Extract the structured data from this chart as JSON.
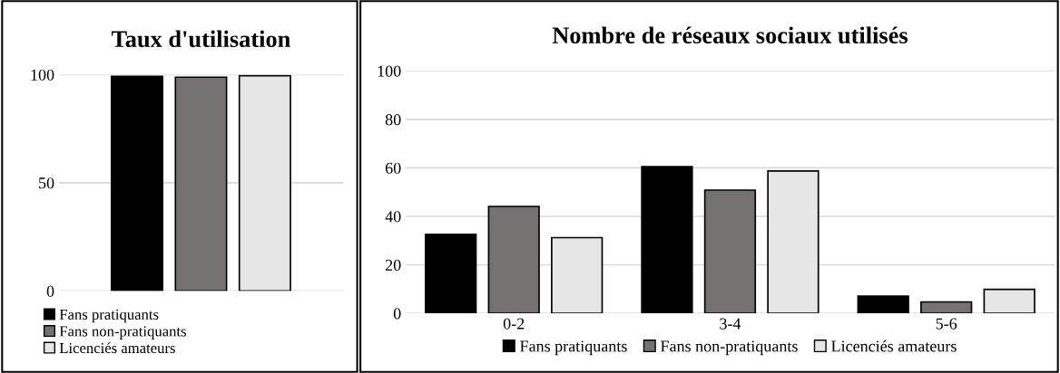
{
  "chart_data": [
    {
      "type": "bar",
      "title": "Taux d'utilisation",
      "categories": [
        null
      ],
      "series": [
        {
          "name": "Fans pratiquants",
          "color": "#000000",
          "values": [
            99.2
          ]
        },
        {
          "name": "Fans non-pratiquants",
          "color": "#767171",
          "values": [
            98.8
          ]
        },
        {
          "name": "Licenciés amateurs",
          "color": "#e7e6e6",
          "values": [
            99.5
          ]
        }
      ],
      "ylim": [
        0,
        100
      ],
      "yticks": [
        0,
        50,
        100
      ],
      "grid": "y",
      "legend": "bottom left"
    },
    {
      "type": "bar",
      "title": "Nombre de réseaux sociaux utilisés",
      "categories": [
        "0-2",
        "3-4",
        "5-6"
      ],
      "series": [
        {
          "name": "Fans pratiquants",
          "color": "#000000",
          "values": [
            32.6,
            60.5,
            7.1
          ]
        },
        {
          "name": "Fans non-pratiquants",
          "color": "#767171",
          "values": [
            44.1,
            50.8,
            4.7
          ]
        },
        {
          "name": "Licenciés amateurs",
          "color": "#e7e6e6",
          "values": [
            31.2,
            58.7,
            9.9
          ]
        }
      ],
      "ylim": [
        0,
        100
      ],
      "yticks": [
        0,
        20,
        40,
        60,
        80,
        100
      ],
      "grid": "y",
      "legend": "bottom"
    }
  ]
}
